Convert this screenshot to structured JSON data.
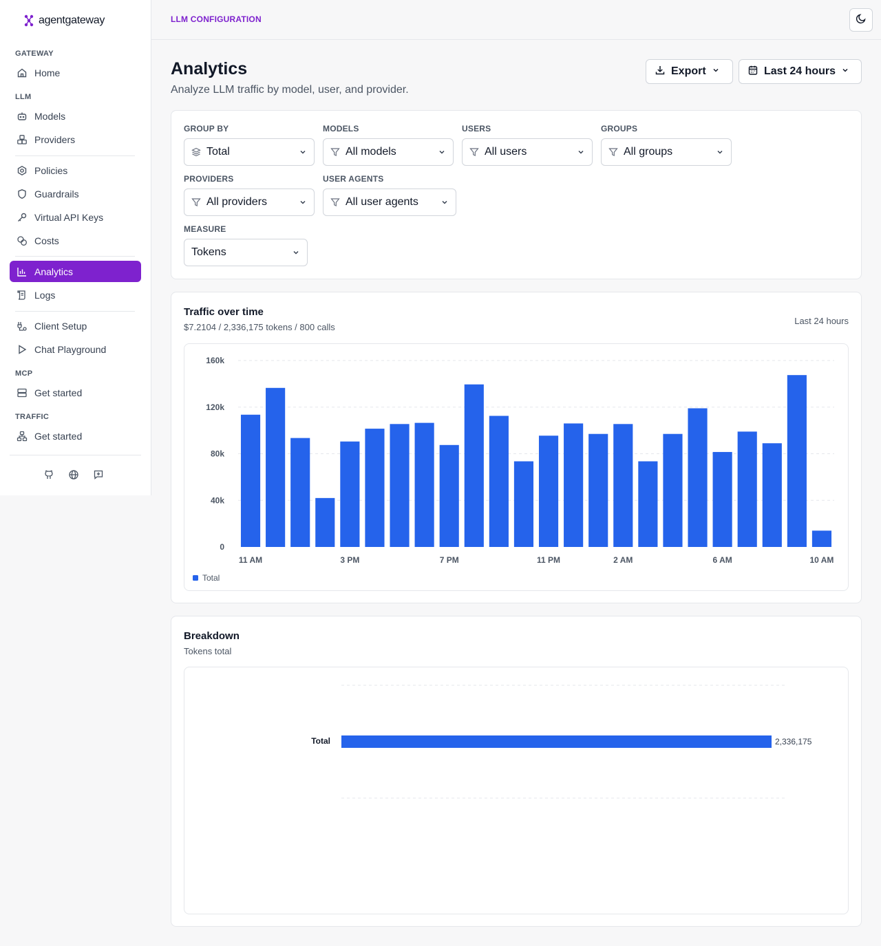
{
  "app": {
    "logo_text": "agentgateway"
  },
  "sidebar": {
    "sections": {
      "gateway": "GATEWAY",
      "llm": "LLM",
      "mcp": "MCP",
      "traffic": "TRAFFIC"
    },
    "items": [
      {
        "label": "Home",
        "icon": "home-icon"
      },
      {
        "label": "Models",
        "icon": "bot-icon"
      },
      {
        "label": "Providers",
        "icon": "boxes-icon"
      },
      {
        "label": "Policies",
        "icon": "settings-icon"
      },
      {
        "label": "Guardrails",
        "icon": "shield-icon"
      },
      {
        "label": "Virtual API Keys",
        "icon": "key-icon"
      },
      {
        "label": "Costs",
        "icon": "coins-icon"
      },
      {
        "label": "Analytics",
        "icon": "bar-chart-icon",
        "active": true
      },
      {
        "label": "Logs",
        "icon": "scroll-icon"
      },
      {
        "label": "Client Setup",
        "icon": "plug-icon"
      },
      {
        "label": "Chat Playground",
        "icon": "play-icon"
      },
      {
        "label": "Get started",
        "icon": "server-icon"
      },
      {
        "label": "Get started",
        "icon": "network-icon"
      }
    ],
    "footer_icons": [
      "github-icon",
      "globe-icon",
      "feedback-icon"
    ]
  },
  "header": {
    "breadcrumb": "LLM CONFIGURATION",
    "theme_icon": "moon-icon"
  },
  "page": {
    "title": "Analytics",
    "subtitle": "Analyze LLM traffic by model, user, and provider.",
    "export_label": "Export",
    "range_label": "Last 24 hours"
  },
  "filters": {
    "group_by": {
      "label": "GROUP BY",
      "value": "Total"
    },
    "models": {
      "label": "MODELS",
      "value": "All models"
    },
    "users": {
      "label": "USERS",
      "value": "All users"
    },
    "groups": {
      "label": "GROUPS",
      "value": "All groups"
    },
    "providers": {
      "label": "PROVIDERS",
      "value": "All providers"
    },
    "user_agents": {
      "label": "USER AGENTS",
      "value": "All user agents"
    },
    "measure": {
      "label": "MEASURE",
      "value": "Tokens"
    }
  },
  "traffic": {
    "title": "Traffic over time",
    "summary": "$7.2104 / 2,336,175 tokens / 800 calls",
    "range": "Last 24 hours"
  },
  "breakdown": {
    "title": "Breakdown",
    "subtitle": "Tokens total"
  },
  "colors": {
    "accent": "#7e22ce",
    "bar": "#2563eb"
  },
  "chart_data": [
    {
      "type": "bar",
      "title": "Traffic over time",
      "ylim": [
        0,
        160000
      ],
      "y_ticks": [
        "0",
        "40k",
        "80k",
        "120k",
        "160k"
      ],
      "x_tick_labels": [
        {
          "index": 0,
          "label": "11 AM"
        },
        {
          "index": 4,
          "label": "3 PM"
        },
        {
          "index": 8,
          "label": "7 PM"
        },
        {
          "index": 12,
          "label": "11 PM"
        },
        {
          "index": 15,
          "label": "2 AM"
        },
        {
          "index": 19,
          "label": "6 AM"
        },
        {
          "index": 23,
          "label": "10 AM"
        }
      ],
      "series": [
        {
          "name": "Total",
          "values": [
            113500,
            136500,
            93500,
            42000,
            90500,
            101500,
            105500,
            106500,
            87500,
            139500,
            112500,
            73500,
            95500,
            106000,
            97000,
            105500,
            73500,
            97000,
            119000,
            81500,
            99000,
            89000,
            147500,
            14000
          ]
        }
      ],
      "legend": "bottom-left"
    },
    {
      "type": "bar",
      "orientation": "horizontal",
      "title": "Breakdown",
      "categories": [
        "Total"
      ],
      "values": [
        2336175
      ],
      "value_labels": [
        "2,336,175"
      ]
    }
  ]
}
